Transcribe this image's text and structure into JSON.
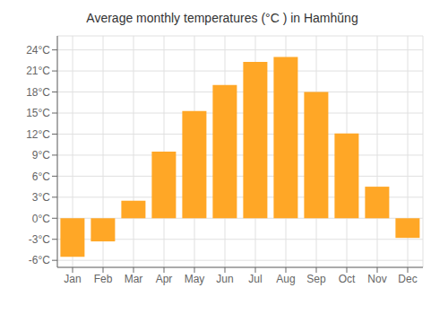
{
  "chart_data": {
    "type": "bar",
    "title": "Average monthly temperatures (°C ) in Hamhŭng",
    "categories": [
      "Jan",
      "Feb",
      "Mar",
      "Apr",
      "May",
      "Jun",
      "Jul",
      "Aug",
      "Sep",
      "Oct",
      "Nov",
      "Dec"
    ],
    "values": [
      -5.5,
      -3.3,
      2.5,
      9.5,
      15.3,
      19.0,
      22.3,
      23.0,
      18.0,
      12.1,
      4.5,
      -2.8
    ],
    "color": "#FFA726",
    "ylim": [
      -7,
      26
    ],
    "yticks": [
      {
        "value": -6,
        "label": "-6°C"
      },
      {
        "value": -3,
        "label": "-3°C"
      },
      {
        "value": 0,
        "label": "0°C"
      },
      {
        "value": 3,
        "label": "3°C"
      },
      {
        "value": 6,
        "label": "6°C"
      },
      {
        "value": 9,
        "label": "9°C"
      },
      {
        "value": 12,
        "label": "12°C"
      },
      {
        "value": 15,
        "label": "15°C"
      },
      {
        "value": 18,
        "label": "18°C"
      },
      {
        "value": 21,
        "label": "21°C"
      },
      {
        "value": 24,
        "label": "24°C"
      }
    ],
    "grid": true
  }
}
